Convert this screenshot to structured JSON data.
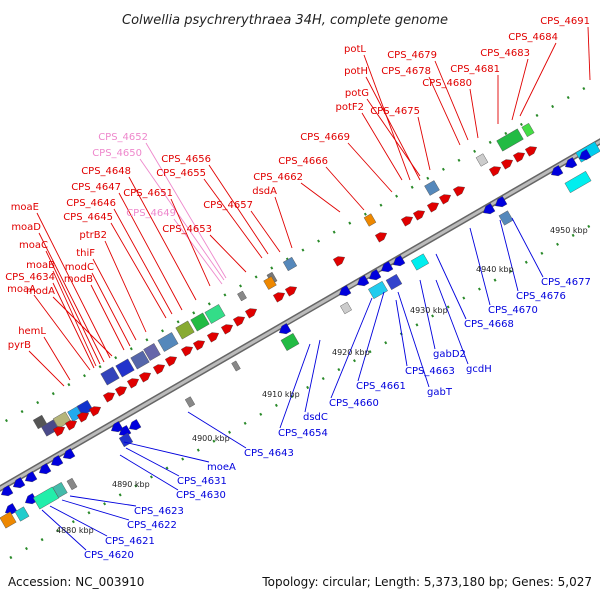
{
  "title": "Colwellia psychrerythraea 34H, complete genome",
  "footer": {
    "accession": "Accession: NC_003910",
    "stats": "Topology: circular; Length: 5,373,180 bp; Genes: 5,027"
  },
  "colors": {
    "forward": "#e00000",
    "reverse": "#0000dd",
    "highlight": "#ee88cc",
    "backbone": "#999999"
  },
  "ticks": [
    "4880 kbp",
    "4890 kbp",
    "4900 kbp",
    "4910 kbp",
    "4920 kbp",
    "4930 kbp",
    "4940 kbp",
    "4950 kbp"
  ],
  "labels_top": [
    {
      "text": "CPS_4691",
      "color": "red"
    },
    {
      "text": "CPS_4684",
      "color": "red"
    },
    {
      "text": "CPS_4683",
      "color": "red"
    },
    {
      "text": "CPS_4681",
      "color": "red"
    },
    {
      "text": "CPS_4680",
      "color": "red"
    },
    {
      "text": "CPS_4679",
      "color": "red"
    },
    {
      "text": "CPS_4678",
      "color": "red"
    },
    {
      "text": "potL",
      "color": "red"
    },
    {
      "text": "potH",
      "color": "red"
    },
    {
      "text": "potG",
      "color": "red"
    },
    {
      "text": "potF2",
      "color": "red"
    },
    {
      "text": "CPS_4675",
      "color": "red"
    },
    {
      "text": "CPS_4669",
      "color": "red"
    },
    {
      "text": "CPS_4666",
      "color": "red"
    },
    {
      "text": "CPS_4662",
      "color": "red"
    },
    {
      "text": "dsdA",
      "color": "red"
    },
    {
      "text": "CPS_4657",
      "color": "red"
    },
    {
      "text": "CPS_4656",
      "color": "red"
    },
    {
      "text": "CPS_4655",
      "color": "red"
    },
    {
      "text": "CPS_4653",
      "color": "red"
    },
    {
      "text": "CPS_4652",
      "color": "pink"
    },
    {
      "text": "CPS_4650",
      "color": "pink"
    },
    {
      "text": "CPS_4649",
      "color": "pink"
    },
    {
      "text": "CPS_4651",
      "color": "red"
    },
    {
      "text": "CPS_4648",
      "color": "red"
    },
    {
      "text": "CPS_4647",
      "color": "red"
    },
    {
      "text": "CPS_4646",
      "color": "red"
    },
    {
      "text": "CPS_4645",
      "color": "red"
    },
    {
      "text": "ptrB2",
      "color": "red"
    },
    {
      "text": "thiF",
      "color": "red"
    },
    {
      "text": "modC",
      "color": "red"
    },
    {
      "text": "modB",
      "color": "red"
    },
    {
      "text": "modA",
      "color": "red"
    },
    {
      "text": "moaE",
      "color": "red"
    },
    {
      "text": "moaD",
      "color": "red"
    },
    {
      "text": "moaC",
      "color": "red"
    },
    {
      "text": "moaB",
      "color": "red"
    },
    {
      "text": "CPS_4634",
      "color": "red"
    },
    {
      "text": "moaA",
      "color": "red"
    },
    {
      "text": "hemL",
      "color": "red"
    },
    {
      "text": "pyrB",
      "color": "red"
    }
  ],
  "labels_bottom": [
    {
      "text": "CPS_4677"
    },
    {
      "text": "CPS_4676"
    },
    {
      "text": "CPS_4670"
    },
    {
      "text": "CPS_4668"
    },
    {
      "text": "gcdH"
    },
    {
      "text": "gabD2"
    },
    {
      "text": "CPS_4663"
    },
    {
      "text": "gabT"
    },
    {
      "text": "CPS_4661"
    },
    {
      "text": "CPS_4660"
    },
    {
      "text": "dsdC"
    },
    {
      "text": "CPS_4654"
    },
    {
      "text": "CPS_4643"
    },
    {
      "text": "moeA"
    },
    {
      "text": "CPS_4631"
    },
    {
      "text": "CPS_4630"
    },
    {
      "text": "CPS_4623"
    },
    {
      "text": "CPS_4622"
    },
    {
      "text": "CPS_4621"
    },
    {
      "text": "CPS_4620"
    }
  ]
}
